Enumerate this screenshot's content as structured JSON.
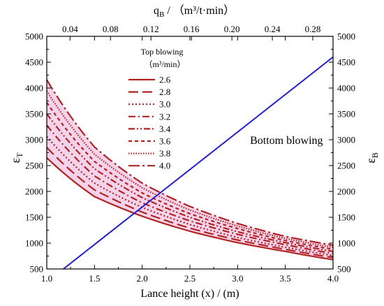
{
  "chart_data": {
    "type": "line",
    "x_label": "Lance height (x) / (m)",
    "x_range": [
      1.0,
      4.0
    ],
    "x_ticks": [
      "1.0",
      "1.5",
      "2.0",
      "2.5",
      "3.0",
      "3.5",
      "4.0"
    ],
    "y_left_label": "ε",
    "y_left_sub": "T",
    "y_right_label": "ε",
    "y_right_sub": "B",
    "y_range": [
      500,
      5000
    ],
    "y_ticks": [
      "500",
      "1000",
      "1500",
      "2000",
      "2500",
      "3000",
      "3500",
      "4000",
      "4500",
      "5000"
    ],
    "top_axis_label_main": "q",
    "top_axis_label_sub": "B",
    "top_axis_label_units": " / （m³/t·min）",
    "top_axis_range": [
      0.017,
      0.3
    ],
    "top_ticks": [
      "0.04",
      "0.08",
      "0.12",
      "0.16",
      "0.20",
      "0.24",
      "0.28"
    ],
    "legend_title_line1": "Top blowing",
    "legend_title_line2": "（m³/min）",
    "legend_placement": "upper-center",
    "series": [
      {
        "name": "2.6",
        "style": "solid",
        "color": "#b22222",
        "x": [
          1.0,
          1.5,
          2.0,
          2.5,
          3.0,
          3.5,
          4.0
        ],
        "y": [
          2650,
          1900,
          1520,
          1230,
          1010,
          840,
          680
        ]
      },
      {
        "name": "2.8",
        "style": "dash",
        "color": "#b22222",
        "x": [
          1.0,
          1.5,
          2.0,
          2.5,
          3.0,
          3.5,
          4.0
        ],
        "y": [
          2850,
          2030,
          1600,
          1290,
          1060,
          880,
          720
        ]
      },
      {
        "name": "3.0",
        "style": "dot",
        "color": "#b22222",
        "x": [
          1.0,
          1.5,
          2.0,
          2.5,
          3.0,
          3.5,
          4.0
        ],
        "y": [
          3060,
          2160,
          1690,
          1360,
          1110,
          920,
          760
        ]
      },
      {
        "name": "3.2",
        "style": "dashdot",
        "color": "#b22222",
        "x": [
          1.0,
          1.5,
          2.0,
          2.5,
          3.0,
          3.5,
          4.0
        ],
        "y": [
          3280,
          2300,
          1780,
          1430,
          1170,
          970,
          800
        ]
      },
      {
        "name": "3.4",
        "style": "dashdotdot",
        "color": "#b22222",
        "x": [
          1.0,
          1.5,
          2.0,
          2.5,
          3.0,
          3.5,
          4.0
        ],
        "y": [
          3500,
          2440,
          1880,
          1500,
          1220,
          1010,
          840
        ]
      },
      {
        "name": "3.6",
        "style": "shortdash",
        "color": "#b22222",
        "x": [
          1.0,
          1.5,
          2.0,
          2.5,
          3.0,
          3.5,
          4.0
        ],
        "y": [
          3720,
          2580,
          1970,
          1570,
          1280,
          1050,
          880
        ]
      },
      {
        "name": "3.8",
        "style": "shortdot",
        "color": "#b22222",
        "x": [
          1.0,
          1.5,
          2.0,
          2.5,
          3.0,
          3.5,
          4.0
        ],
        "y": [
          3940,
          2720,
          2070,
          1640,
          1330,
          1090,
          920
        ]
      },
      {
        "name": "4.0",
        "style": "longdashdot",
        "color": "#b22222",
        "x": [
          1.0,
          1.5,
          2.0,
          2.5,
          3.0,
          3.5,
          4.0
        ],
        "y": [
          4160,
          2860,
          2160,
          1710,
          1380,
          1130,
          960
        ]
      },
      {
        "name": "Bottom blowing",
        "style": "solid",
        "color": "#1f1fcc",
        "axis": "top-right",
        "x": [
          0.0334,
          0.3
        ],
        "y": [
          500,
          4600
        ]
      }
    ],
    "annotations": [
      {
        "text": "Bottom blowing",
        "x": 3.13,
        "y": 2920
      }
    ],
    "band_color": "#f2c6e4",
    "grid": false
  }
}
